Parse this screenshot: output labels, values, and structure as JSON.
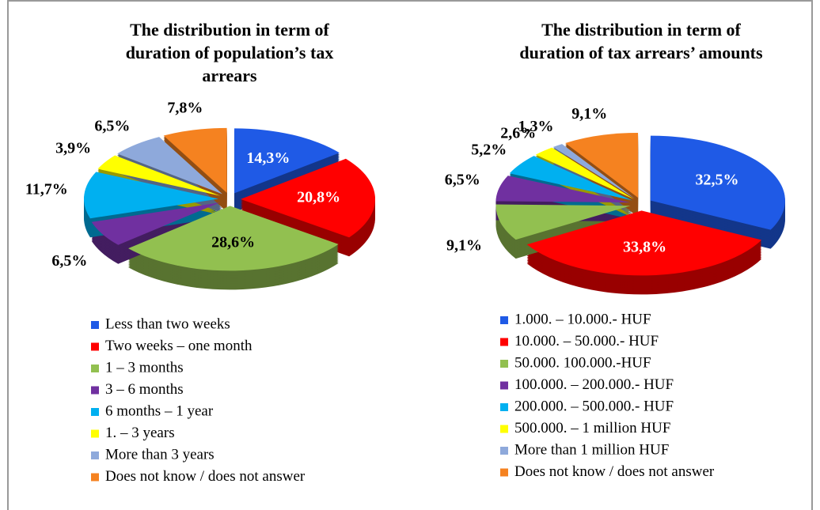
{
  "chart_data": [
    {
      "type": "pie",
      "title": [
        "The distribution in term of",
        "duration of population’s tax",
        "arrears"
      ],
      "categories": [
        "Less than two weeks",
        "Two weeks – one month",
        "1 – 3 months",
        "3 – 6 months",
        "6 months – 1 year",
        "1. – 3 years",
        "More than 3 years",
        "Does not know / does not answer"
      ],
      "values": [
        14.3,
        20.8,
        28.6,
        6.5,
        11.7,
        3.9,
        6.5,
        7.8
      ],
      "value_labels": [
        "14,3%",
        "20,8%",
        "28,6%",
        "6,5%",
        "11,7%",
        "3,9%",
        "6,5%",
        "7,8%"
      ],
      "colors": [
        "#1f5ae6",
        "#ff0000",
        "#92c050",
        "#7030a0",
        "#00b0f0",
        "#ffff00",
        "#8ea9db",
        "#f58220"
      ]
    },
    {
      "type": "pie",
      "title": [
        "The distribution in term of",
        "duration of tax arrears’ amounts"
      ],
      "categories": [
        "1.000. – 10.000.- HUF",
        "10.000. – 50.000.- HUF",
        "50.000.   100.000.-HUF",
        "100.000. – 200.000.- HUF",
        "200.000. – 500.000.- HUF",
        "500.000. – 1 million HUF",
        "More than 1 million HUF",
        "Does not know / does not answer"
      ],
      "values": [
        32.5,
        33.8,
        9.1,
        6.5,
        5.2,
        2.6,
        1.3,
        9.1
      ],
      "value_labels": [
        "32,5%",
        "33,8%",
        "9,1%",
        "6,5%",
        "5,2%",
        "2,6%",
        "1,3%",
        "9,1%"
      ],
      "colors": [
        "#1f5ae6",
        "#ff0000",
        "#92c050",
        "#7030a0",
        "#00b0f0",
        "#ffff00",
        "#8ea9db",
        "#f58220"
      ]
    }
  ]
}
